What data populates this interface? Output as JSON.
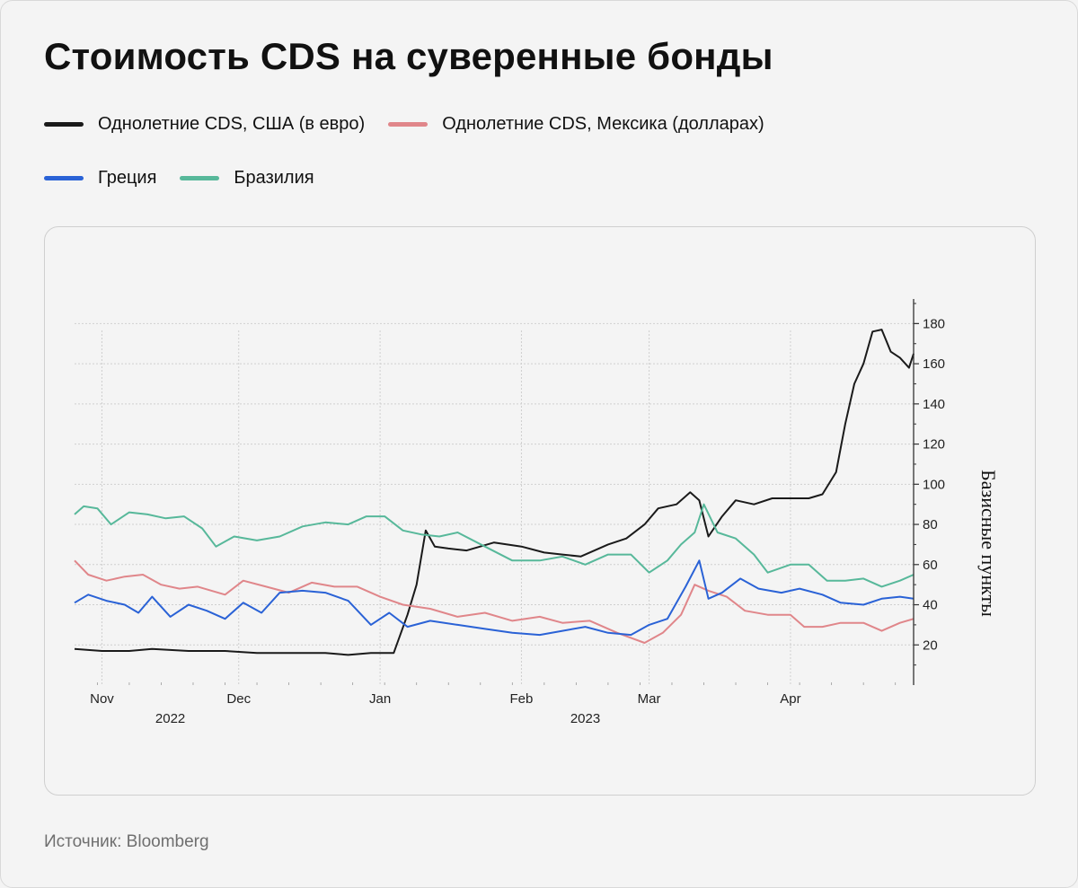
{
  "title": "Стоимость CDS на суверенные бонды",
  "source": "Источник: Bloomberg",
  "legend": [
    {
      "label": "Однолетние CDS, США (в евро)",
      "color": "#1a1a1a"
    },
    {
      "label": "Однолетние CDS, Мексика (долларах)",
      "color": "#e0868a"
    },
    {
      "label": "Греция",
      "color": "#2a62d6"
    },
    {
      "label": "Бразилия",
      "color": "#57b89a"
    }
  ],
  "chart_data": {
    "type": "line",
    "ylabel": "Базисные пункты",
    "ylim": [
      0,
      190
    ],
    "yticks": [
      20,
      40,
      60,
      80,
      100,
      120,
      140,
      160,
      180
    ],
    "x_start": "2022-10-26",
    "x_end": "2023-04-28",
    "month_ticks": [
      {
        "label": "Nov",
        "date": "2022-11-01"
      },
      {
        "label": "Dec",
        "date": "2022-12-01"
      },
      {
        "label": "Jan",
        "date": "2023-01-01"
      },
      {
        "label": "Feb",
        "date": "2023-02-01"
      },
      {
        "label": "Mar",
        "date": "2023-03-01"
      },
      {
        "label": "Apr",
        "date": "2023-04-01"
      }
    ],
    "year_ticks": [
      {
        "label": "2022",
        "date": "2022-11-16"
      },
      {
        "label": "2023",
        "date": "2023-02-15"
      }
    ],
    "grid": true,
    "series": [
      {
        "name": "Однолетние CDS, США (в евро)",
        "color": "#1a1a1a",
        "points": [
          [
            "2022-10-26",
            18
          ],
          [
            "2022-11-01",
            17
          ],
          [
            "2022-11-07",
            17
          ],
          [
            "2022-11-12",
            18
          ],
          [
            "2022-11-20",
            17
          ],
          [
            "2022-11-28",
            17
          ],
          [
            "2022-12-05",
            16
          ],
          [
            "2022-12-12",
            16
          ],
          [
            "2022-12-20",
            16
          ],
          [
            "2022-12-25",
            15
          ],
          [
            "2022-12-30",
            16
          ],
          [
            "2023-01-04",
            16
          ],
          [
            "2023-01-07",
            35
          ],
          [
            "2023-01-09",
            50
          ],
          [
            "2023-01-11",
            77
          ],
          [
            "2023-01-13",
            69
          ],
          [
            "2023-01-16",
            68
          ],
          [
            "2023-01-20",
            67
          ],
          [
            "2023-01-26",
            71
          ],
          [
            "2023-02-01",
            69
          ],
          [
            "2023-02-06",
            66
          ],
          [
            "2023-02-10",
            65
          ],
          [
            "2023-02-14",
            64
          ],
          [
            "2023-02-20",
            70
          ],
          [
            "2023-02-24",
            73
          ],
          [
            "2023-02-28",
            80
          ],
          [
            "2023-03-03",
            88
          ],
          [
            "2023-03-07",
            90
          ],
          [
            "2023-03-10",
            96
          ],
          [
            "2023-03-12",
            92
          ],
          [
            "2023-03-14",
            74
          ],
          [
            "2023-03-17",
            84
          ],
          [
            "2023-03-20",
            92
          ],
          [
            "2023-03-24",
            90
          ],
          [
            "2023-03-28",
            93
          ],
          [
            "2023-04-01",
            93
          ],
          [
            "2023-04-05",
            93
          ],
          [
            "2023-04-08",
            95
          ],
          [
            "2023-04-11",
            106
          ],
          [
            "2023-04-13",
            130
          ],
          [
            "2023-04-15",
            150
          ],
          [
            "2023-04-17",
            160
          ],
          [
            "2023-04-19",
            176
          ],
          [
            "2023-04-21",
            177
          ],
          [
            "2023-04-23",
            166
          ],
          [
            "2023-04-25",
            163
          ],
          [
            "2023-04-27",
            158
          ],
          [
            "2023-04-28",
            165
          ]
        ]
      },
      {
        "name": "Однолетние CDS, Мексика (долларах)",
        "color": "#e0868a",
        "points": [
          [
            "2022-10-26",
            62
          ],
          [
            "2022-10-29",
            55
          ],
          [
            "2022-11-02",
            52
          ],
          [
            "2022-11-06",
            54
          ],
          [
            "2022-11-10",
            55
          ],
          [
            "2022-11-14",
            50
          ],
          [
            "2022-11-18",
            48
          ],
          [
            "2022-11-22",
            49
          ],
          [
            "2022-11-28",
            45
          ],
          [
            "2022-12-02",
            52
          ],
          [
            "2022-12-07",
            49
          ],
          [
            "2022-12-12",
            46
          ],
          [
            "2022-12-17",
            51
          ],
          [
            "2022-12-22",
            49
          ],
          [
            "2022-12-27",
            49
          ],
          [
            "2023-01-01",
            44
          ],
          [
            "2023-01-06",
            40
          ],
          [
            "2023-01-12",
            38
          ],
          [
            "2023-01-18",
            34
          ],
          [
            "2023-01-24",
            36
          ],
          [
            "2023-01-30",
            32
          ],
          [
            "2023-02-05",
            34
          ],
          [
            "2023-02-10",
            31
          ],
          [
            "2023-02-16",
            32
          ],
          [
            "2023-02-22",
            26
          ],
          [
            "2023-02-28",
            21
          ],
          [
            "2023-03-04",
            26
          ],
          [
            "2023-03-08",
            35
          ],
          [
            "2023-03-11",
            50
          ],
          [
            "2023-03-14",
            47
          ],
          [
            "2023-03-18",
            44
          ],
          [
            "2023-03-22",
            37
          ],
          [
            "2023-03-27",
            35
          ],
          [
            "2023-04-01",
            35
          ],
          [
            "2023-04-04",
            29
          ],
          [
            "2023-04-08",
            29
          ],
          [
            "2023-04-12",
            31
          ],
          [
            "2023-04-17",
            31
          ],
          [
            "2023-04-21",
            27
          ],
          [
            "2023-04-25",
            31
          ],
          [
            "2023-04-28",
            33
          ]
        ]
      },
      {
        "name": "Греция",
        "color": "#2a62d6",
        "points": [
          [
            "2022-10-26",
            41
          ],
          [
            "2022-10-29",
            45
          ],
          [
            "2022-11-02",
            42
          ],
          [
            "2022-11-06",
            40
          ],
          [
            "2022-11-09",
            36
          ],
          [
            "2022-11-12",
            44
          ],
          [
            "2022-11-16",
            34
          ],
          [
            "2022-11-20",
            40
          ],
          [
            "2022-11-24",
            37
          ],
          [
            "2022-11-28",
            33
          ],
          [
            "2022-12-02",
            41
          ],
          [
            "2022-12-06",
            36
          ],
          [
            "2022-12-10",
            46
          ],
          [
            "2022-12-15",
            47
          ],
          [
            "2022-12-20",
            46
          ],
          [
            "2022-12-25",
            42
          ],
          [
            "2022-12-30",
            30
          ],
          [
            "2023-01-03",
            36
          ],
          [
            "2023-01-07",
            29
          ],
          [
            "2023-01-12",
            32
          ],
          [
            "2023-01-18",
            30
          ],
          [
            "2023-01-24",
            28
          ],
          [
            "2023-01-30",
            26
          ],
          [
            "2023-02-05",
            25
          ],
          [
            "2023-02-10",
            27
          ],
          [
            "2023-02-15",
            29
          ],
          [
            "2023-02-20",
            26
          ],
          [
            "2023-02-25",
            25
          ],
          [
            "2023-03-01",
            30
          ],
          [
            "2023-03-05",
            33
          ],
          [
            "2023-03-09",
            49
          ],
          [
            "2023-03-12",
            62
          ],
          [
            "2023-03-14",
            43
          ],
          [
            "2023-03-17",
            46
          ],
          [
            "2023-03-21",
            53
          ],
          [
            "2023-03-25",
            48
          ],
          [
            "2023-03-30",
            46
          ],
          [
            "2023-04-03",
            48
          ],
          [
            "2023-04-08",
            45
          ],
          [
            "2023-04-12",
            41
          ],
          [
            "2023-04-17",
            40
          ],
          [
            "2023-04-21",
            43
          ],
          [
            "2023-04-25",
            44
          ],
          [
            "2023-04-28",
            43
          ]
        ]
      },
      {
        "name": "Бразилия",
        "color": "#57b89a",
        "points": [
          [
            "2022-10-26",
            85
          ],
          [
            "2022-10-28",
            89
          ],
          [
            "2022-10-31",
            88
          ],
          [
            "2022-11-03",
            80
          ],
          [
            "2022-11-07",
            86
          ],
          [
            "2022-11-11",
            85
          ],
          [
            "2022-11-15",
            83
          ],
          [
            "2022-11-19",
            84
          ],
          [
            "2022-11-23",
            78
          ],
          [
            "2022-11-26",
            69
          ],
          [
            "2022-11-30",
            74
          ],
          [
            "2022-12-05",
            72
          ],
          [
            "2022-12-10",
            74
          ],
          [
            "2022-12-15",
            79
          ],
          [
            "2022-12-20",
            81
          ],
          [
            "2022-12-25",
            80
          ],
          [
            "2022-12-29",
            84
          ],
          [
            "2023-01-02",
            84
          ],
          [
            "2023-01-06",
            77
          ],
          [
            "2023-01-10",
            75
          ],
          [
            "2023-01-14",
            74
          ],
          [
            "2023-01-18",
            76
          ],
          [
            "2023-01-24",
            69
          ],
          [
            "2023-01-30",
            62
          ],
          [
            "2023-02-05",
            62
          ],
          [
            "2023-02-10",
            64
          ],
          [
            "2023-02-15",
            60
          ],
          [
            "2023-02-20",
            65
          ],
          [
            "2023-02-25",
            65
          ],
          [
            "2023-03-01",
            56
          ],
          [
            "2023-03-05",
            62
          ],
          [
            "2023-03-08",
            70
          ],
          [
            "2023-03-11",
            76
          ],
          [
            "2023-03-13",
            90
          ],
          [
            "2023-03-16",
            76
          ],
          [
            "2023-03-20",
            73
          ],
          [
            "2023-03-24",
            65
          ],
          [
            "2023-03-27",
            56
          ],
          [
            "2023-04-01",
            60
          ],
          [
            "2023-04-05",
            60
          ],
          [
            "2023-04-09",
            52
          ],
          [
            "2023-04-13",
            52
          ],
          [
            "2023-04-17",
            53
          ],
          [
            "2023-04-21",
            49
          ],
          [
            "2023-04-25",
            52
          ],
          [
            "2023-04-28",
            55
          ]
        ]
      }
    ]
  }
}
